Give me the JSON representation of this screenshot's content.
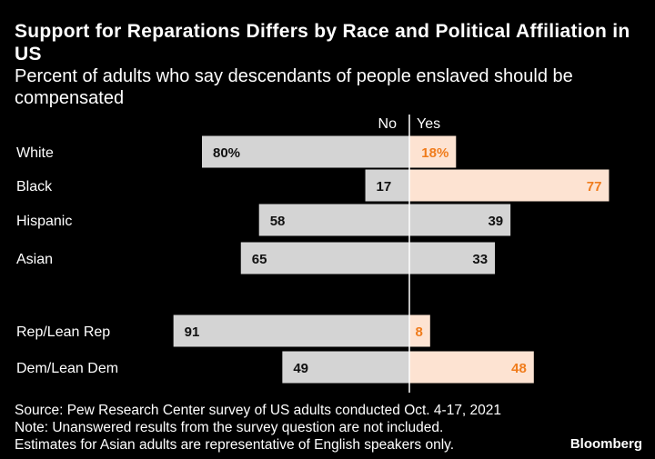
{
  "title": "Support for Reparations Differs by Race and Political Affiliation in US",
  "subtitle": "Percent of adults who say descendants of people enslaved should be compensated",
  "chart_data": {
    "type": "bar",
    "orientation": "diverging-horizontal",
    "legend": {
      "no_label": "No",
      "yes_label": "Yes"
    },
    "categories": [
      "White",
      "Black",
      "Hispanic",
      "Asian",
      "Rep/Lean Rep",
      "Dem/Lean Dem"
    ],
    "series": [
      {
        "name": "No",
        "values": [
          80,
          17,
          58,
          65,
          91,
          49
        ],
        "labels": [
          "80%",
          "17",
          "58",
          "65",
          "91",
          "49"
        ]
      },
      {
        "name": "Yes",
        "values": [
          18,
          77,
          39,
          33,
          8,
          48
        ],
        "labels": [
          "18%",
          "77",
          "39",
          "33",
          "8",
          "48"
        ]
      }
    ],
    "colors": {
      "no_bar": "#d4d4d4",
      "no_text": "#111111",
      "yes_bar_light": "#fde3d2",
      "yes_bar_gray": "#d4d4d4",
      "yes_text_orange": "#f07c1c",
      "yes_text_dark": "#111111",
      "axis": "#ffffff",
      "category_text": "#ffffff"
    },
    "yes_highlight": [
      true,
      true,
      false,
      false,
      true,
      true
    ]
  },
  "footer": {
    "source": "Source: Pew Research Center survey of US adults conducted Oct. 4-17, 2021",
    "note1": "Note: Unanswered results from the survey question are not included.",
    "note2": "Estimates for Asian adults are representative of English speakers only."
  },
  "logo_text": "Bloomberg"
}
